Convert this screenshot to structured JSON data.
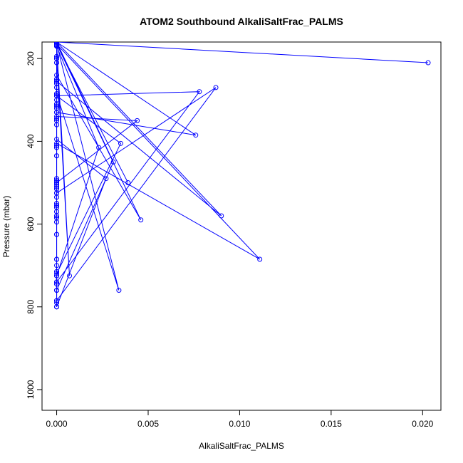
{
  "chart_data": {
    "type": "line",
    "title": "ATOM2 Southbound AlkaliSaltFrac_PALMS",
    "xlabel": "AlkaliSaltFrac_PALMS",
    "ylabel": "Pressure (mbar)",
    "xlim": [
      -0.0008,
      0.021
    ],
    "ylim": [
      1050,
      160
    ],
    "y_reversed": true,
    "grid": false,
    "legend": "none",
    "line_color": "#0000ff",
    "x_ticks": [
      0.0,
      0.005,
      0.01,
      0.015,
      0.02
    ],
    "x_tick_labels": [
      "0.000",
      "0.005",
      "0.010",
      "0.015",
      "0.020"
    ],
    "y_ticks": [
      200,
      400,
      600,
      800,
      1000
    ],
    "y_tick_labels": [
      "200",
      "400",
      "600",
      "800",
      "1000"
    ],
    "series": [
      {
        "x": [
          0.0,
          0.0,
          0.0,
          0.0,
          0.0,
          0.0,
          0.0,
          0.0,
          0.0,
          0.0,
          0.0,
          0.0,
          0.0,
          0.0,
          0.0,
          0.0,
          0.0,
          0.0,
          0.0,
          0.0,
          0.0,
          0.0,
          0.0,
          0.0,
          0.0,
          0.0,
          0.0,
          0.0,
          0.0,
          0.0,
          0.0,
          0.0,
          0.0,
          0.0,
          0.0,
          0.0,
          0.0,
          0.0,
          0.0,
          0.0,
          0.0,
          0.0,
          0.0,
          0.0,
          0.0,
          0.0,
          0.0,
          0.0,
          0.0,
          0.0,
          0.0,
          0.0,
          0.0,
          0.0,
          0.0,
          0.0,
          0.0,
          0.0,
          0.0,
          0.0,
          0.0,
          0.0,
          0.0,
          0.0,
          0.0,
          0.0,
          0.0,
          0.0,
          0.0,
          0.0,
          0.0,
          0.0,
          0.0,
          0.0,
          0.0,
          0.0,
          0.0,
          0.0,
          0.0,
          0.0,
          0.0,
          0.0,
          0.0,
          0.0,
          0.0,
          0.0,
          0.0,
          0.0,
          0.0,
          0.0,
          0.0,
          0.0,
          0.0,
          0.0,
          0.0,
          0.0,
          0.0,
          0.0,
          0.0,
          0.0,
          0.0,
          0.0
        ],
        "y": [
          160,
          165,
          168,
          170,
          195,
          200,
          210,
          250,
          255,
          260,
          270,
          285,
          290,
          300,
          310,
          315,
          320,
          330,
          345,
          350,
          360,
          410,
          415,
          435,
          490,
          495,
          500,
          505,
          510,
          515,
          525,
          535,
          550,
          555,
          560,
          570,
          580,
          585,
          595,
          625,
          685,
          715,
          725,
          740,
          745,
          760,
          785,
          800,
          800,
          790,
          785,
          760,
          745,
          740,
          725,
          715,
          700,
          685,
          625,
          595,
          585,
          580,
          570,
          560,
          555,
          550,
          535,
          525,
          515,
          510,
          505,
          500,
          495,
          490,
          435,
          415,
          410,
          360,
          350,
          345,
          330,
          320,
          315,
          310,
          300,
          290,
          285,
          270,
          260,
          255,
          250,
          210,
          200,
          195,
          170,
          168,
          165,
          160,
          165,
          170,
          200,
          260
        ]
      },
      {
        "x": [
          0.0203,
          0.0,
          0.0,
          0.0087,
          0.0,
          0.0,
          0.0078,
          0.0,
          0.0,
          0.0044,
          0.0,
          0.0,
          0.0035,
          0.0,
          0.0,
          0.0031,
          0.0,
          0.0,
          0.0039,
          0.0,
          0.0,
          0.0046,
          0.0,
          0.0,
          0.0034,
          0.0,
          0.0,
          0.0007,
          0.0,
          0.0,
          0.0027,
          0.0,
          0.0,
          0.0023,
          0.0,
          0.0,
          0.0076,
          0.0,
          0.0,
          0.009,
          0.0,
          0.0,
          0.0111,
          0.0,
          0.0
        ],
        "y": [
          210,
          160,
          525,
          270,
          785,
          290,
          280,
          740,
          340,
          350,
          500,
          290,
          405,
          720,
          160,
          450,
          760,
          165,
          500,
          165,
          240,
          590,
          165,
          285,
          760,
          165,
          200,
          725,
          165,
          395,
          490,
          800,
          170,
          415,
          725,
          330,
          385,
          160,
          255,
          580,
          160,
          405,
          685,
          165,
          310
        ]
      }
    ]
  }
}
